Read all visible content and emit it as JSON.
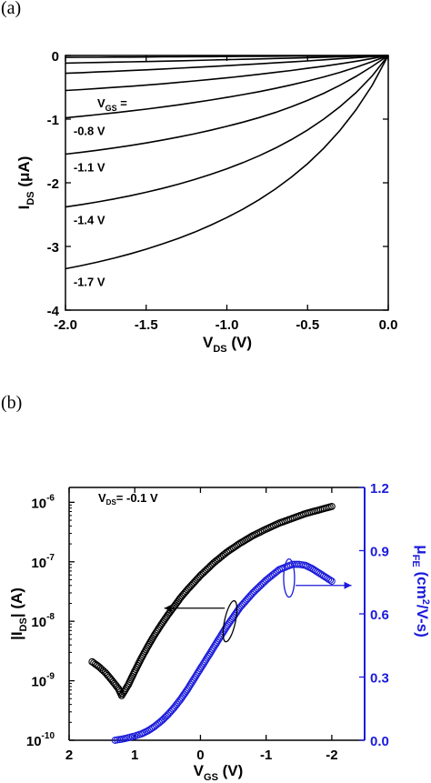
{
  "panel_labels": {
    "a": "(a)",
    "b": "(b)"
  },
  "chart_data": [
    {
      "type": "line",
      "panel": "(a)",
      "xlabel": {
        "main": "V",
        "sub": "DS",
        "unit": " (V)"
      },
      "ylabel": {
        "main": "I",
        "sub": "DS",
        "unit": " (μA)"
      },
      "xlim": [
        -2.0,
        0.0
      ],
      "ylim": [
        -4,
        0
      ],
      "xticks": [
        -2.0,
        -1.5,
        -1.0,
        -0.5,
        0.0
      ],
      "xtick_labels": [
        "-2.0",
        "-1.5",
        "-1.0",
        "-0.5",
        "0.0"
      ],
      "yticks": [
        0,
        -1,
        -2,
        -3,
        -4
      ],
      "ytick_labels": [
        "0",
        "-1",
        "-2",
        "-3",
        "-4"
      ],
      "legend_header": {
        "main": "V",
        "sub": "GS",
        "suffix": " ="
      },
      "x": [
        -2.0,
        -1.9,
        -1.8,
        -1.7,
        -1.6,
        -1.5,
        -1.4,
        -1.3,
        -1.2,
        -1.1,
        -1.0,
        -0.9,
        -0.8,
        -0.7,
        -0.6,
        -0.5,
        -0.4,
        -0.3,
        -0.2,
        -0.1,
        0.0
      ],
      "series": [
        {
          "values": [
            -0.03,
            -0.029,
            -0.028,
            -0.026,
            -0.025,
            -0.024,
            -0.022,
            -0.021,
            -0.019,
            -0.018,
            -0.016,
            -0.015,
            -0.013,
            -0.012,
            -0.01,
            -0.008,
            -0.007,
            -0.005,
            -0.003,
            -0.002,
            0.0
          ]
        },
        {
          "values": [
            -0.12,
            -0.115,
            -0.11,
            -0.105,
            -0.1,
            -0.095,
            -0.09,
            -0.084,
            -0.078,
            -0.072,
            -0.066,
            -0.06,
            -0.054,
            -0.047,
            -0.041,
            -0.034,
            -0.027,
            -0.02,
            -0.014,
            -0.007,
            0.0
          ]
        },
        {
          "values": [
            -0.28,
            -0.27,
            -0.259,
            -0.248,
            -0.237,
            -0.225,
            -0.213,
            -0.2,
            -0.187,
            -0.174,
            -0.16,
            -0.146,
            -0.131,
            -0.116,
            -0.101,
            -0.085,
            -0.069,
            -0.052,
            -0.035,
            -0.018,
            0.0
          ]
        },
        {
          "values": [
            -0.55,
            -0.535,
            -0.519,
            -0.502,
            -0.484,
            -0.465,
            -0.445,
            -0.423,
            -0.4,
            -0.376,
            -0.351,
            -0.324,
            -0.296,
            -0.266,
            -0.235,
            -0.202,
            -0.168,
            -0.131,
            -0.091,
            -0.047,
            0.0
          ]
        },
        {
          "values": [
            -0.98,
            -0.955,
            -0.929,
            -0.902,
            -0.873,
            -0.843,
            -0.81,
            -0.776,
            -0.739,
            -0.7,
            -0.659,
            -0.615,
            -0.568,
            -0.517,
            -0.462,
            -0.402,
            -0.337,
            -0.266,
            -0.186,
            -0.097,
            0.0
          ],
          "label": "-0.8 V"
        },
        {
          "values": [
            -1.55,
            -1.52,
            -1.488,
            -1.453,
            -1.415,
            -1.374,
            -1.33,
            -1.282,
            -1.23,
            -1.174,
            -1.113,
            -1.047,
            -0.975,
            -0.895,
            -0.806,
            -0.706,
            -0.594,
            -0.469,
            -0.329,
            -0.171,
            0.0
          ],
          "label": "-1.1 V"
        },
        {
          "values": [
            -2.38,
            -2.342,
            -2.3,
            -2.254,
            -2.204,
            -2.149,
            -2.088,
            -2.022,
            -1.949,
            -1.869,
            -1.78,
            -1.683,
            -1.575,
            -1.455,
            -1.321,
            -1.17,
            -1.0,
            -0.806,
            -0.585,
            -0.322,
            0.0
          ],
          "label": "-1.4 V"
        },
        {
          "values": [
            -3.35,
            -3.3,
            -3.245,
            -3.184,
            -3.117,
            -3.043,
            -2.962,
            -2.873,
            -2.775,
            -2.666,
            -2.546,
            -2.413,
            -2.265,
            -2.099,
            -1.912,
            -1.7,
            -1.458,
            -1.179,
            -0.855,
            -0.47,
            0.0
          ],
          "label": "-1.7 V"
        }
      ],
      "grid": false
    },
    {
      "type": "scatter",
      "panel": "(b)",
      "annotation": {
        "main": "V",
        "sub": "DS",
        "suffix": "= -0.1 V"
      },
      "xlabel": {
        "main": "V",
        "sub": "GS",
        "unit": " (V)"
      },
      "ylabel_left": {
        "prefix": "|I",
        "sub": "DS",
        "unit": "| (A)"
      },
      "ylabel_right": {
        "main": "μ",
        "sub": "FE",
        "unit": " (cm",
        "sup": "2",
        "tail": "/V-s)"
      },
      "xlim": [
        2,
        -2.5
      ],
      "xticks": [
        2,
        1,
        0,
        -1,
        -2
      ],
      "xtick_labels": [
        "2",
        "1",
        "0",
        "-1",
        "-2"
      ],
      "ylim_left_log10": [
        -10,
        -5.75
      ],
      "yticks_left": [
        -10,
        -9,
        -8,
        -7,
        -6
      ],
      "ytick_left_base": "10",
      "ylim_right": [
        0.0,
        1.2
      ],
      "yticks_right": [
        0.0,
        0.3,
        0.6,
        0.9,
        1.2
      ],
      "ytick_right_labels": [
        "0.0",
        "0.3",
        "0.6",
        "0.9",
        "1.2"
      ],
      "series": [
        {
          "axis": "left",
          "color": "#000000",
          "marker": "open-circle",
          "x": [
            1.65,
            1.55,
            1.45,
            1.35,
            1.25,
            1.2,
            1.1,
            1.0,
            0.9,
            0.8,
            0.7,
            0.6,
            0.5,
            0.4,
            0.3,
            0.2,
            0.1,
            0.0,
            -0.2,
            -0.4,
            -0.6,
            -0.8,
            -1.0,
            -1.2,
            -1.4,
            -1.6,
            -1.8,
            -2.0
          ],
          "log10_values": [
            -8.68,
            -8.76,
            -8.86,
            -8.99,
            -9.13,
            -9.25,
            -9.07,
            -8.84,
            -8.62,
            -8.42,
            -8.23,
            -8.06,
            -7.9,
            -7.75,
            -7.6,
            -7.47,
            -7.35,
            -7.23,
            -7.02,
            -6.84,
            -6.69,
            -6.56,
            -6.45,
            -6.35,
            -6.27,
            -6.19,
            -6.13,
            -6.07
          ]
        },
        {
          "axis": "right",
          "color": "#1a1adb",
          "marker": "open-circle",
          "x": [
            1.3,
            1.2,
            1.1,
            1.0,
            0.9,
            0.8,
            0.7,
            0.6,
            0.5,
            0.4,
            0.3,
            0.2,
            0.1,
            0.0,
            -0.2,
            -0.4,
            -0.6,
            -0.8,
            -1.0,
            -1.2,
            -1.4,
            -1.5,
            -1.6,
            -1.7,
            -1.8,
            -1.9,
            -2.0
          ],
          "values": [
            0.0,
            0.005,
            0.012,
            0.02,
            0.03,
            0.045,
            0.065,
            0.09,
            0.12,
            0.155,
            0.195,
            0.24,
            0.29,
            0.34,
            0.44,
            0.54,
            0.63,
            0.7,
            0.76,
            0.81,
            0.835,
            0.835,
            0.83,
            0.815,
            0.795,
            0.775,
            0.755
          ]
        }
      ],
      "grid": false
    }
  ]
}
